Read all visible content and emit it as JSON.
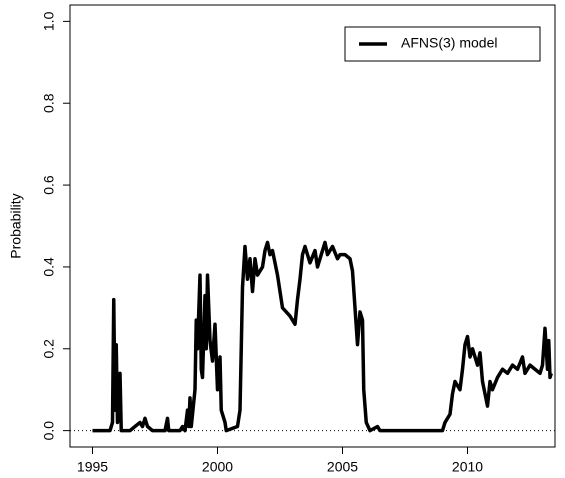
{
  "chart_data": {
    "type": "line",
    "ylabel": "Probability",
    "xlim": [
      1994.1,
      2013.5
    ],
    "ylim": [
      -0.04,
      1.04
    ],
    "xticks": [
      1995,
      2000,
      2005,
      2010
    ],
    "yticks": [
      {
        "value": 0,
        "label": "0.0"
      },
      {
        "value": 0.2,
        "label": "0.2"
      },
      {
        "value": 0.4,
        "label": "0.4"
      },
      {
        "value": 0.6,
        "label": "0.6"
      },
      {
        "value": 0.8,
        "label": "0.8"
      },
      {
        "value": 1,
        "label": "1.0"
      }
    ],
    "reference_line": 0,
    "legend": "topright",
    "series": [
      {
        "name": "AFNS(3) model",
        "color": "#000000",
        "x": [
          1995.0,
          1995.7,
          1995.8,
          1995.85,
          1995.9,
          1995.95,
          1996.0,
          1996.1,
          1996.15,
          1996.5,
          1996.7,
          1996.9,
          1997.0,
          1997.1,
          1997.2,
          1997.4,
          1997.9,
          1998.0,
          1998.05,
          1998.5,
          1998.6,
          1998.7,
          1998.8,
          1998.85,
          1998.9,
          1998.95,
          1999.1,
          1999.15,
          1999.2,
          1999.3,
          1999.35,
          1999.4,
          1999.5,
          1999.55,
          1999.6,
          1999.7,
          1999.8,
          1999.9,
          2000.0,
          2000.1,
          2000.15,
          2000.3,
          2000.35,
          2000.8,
          2000.9,
          2001.0,
          2001.1,
          2001.2,
          2001.3,
          2001.4,
          2001.5,
          2001.6,
          2001.8,
          2001.9,
          2002.0,
          2002.1,
          2002.2,
          2002.4,
          2002.5,
          2002.6,
          2002.9,
          2003.1,
          2003.2,
          2003.3,
          2003.4,
          2003.5,
          2003.7,
          2003.9,
          2004.0,
          2004.2,
          2004.3,
          2004.4,
          2004.6,
          2004.8,
          2004.9,
          2005.1,
          2005.3,
          2005.4,
          2005.5,
          2005.6,
          2005.7,
          2005.8,
          2005.85,
          2005.95,
          2006.1,
          2006.4,
          2006.5,
          2009.0,
          2009.1,
          2009.3,
          2009.4,
          2009.5,
          2009.7,
          2009.8,
          2009.9,
          2010.0,
          2010.1,
          2010.2,
          2010.3,
          2010.4,
          2010.5,
          2010.6,
          2010.7,
          2010.8,
          2010.9,
          2011.0,
          2011.2,
          2011.4,
          2011.6,
          2011.8,
          2012.0,
          2012.2,
          2012.3,
          2012.5,
          2012.7,
          2012.9,
          2013.0,
          2013.1,
          2013.2,
          2013.25,
          2013.3,
          2013.35
        ],
        "values": [
          0,
          0,
          0.02,
          0.32,
          0.05,
          0.21,
          0.02,
          0.14,
          0,
          0,
          0.01,
          0.02,
          0.01,
          0.03,
          0.01,
          0,
          0,
          0.03,
          0,
          0,
          0.01,
          0,
          0.05,
          0.01,
          0.08,
          0.01,
          0.1,
          0.27,
          0.2,
          0.38,
          0.15,
          0.13,
          0.33,
          0.2,
          0.38,
          0.22,
          0.17,
          0.26,
          0.1,
          0.18,
          0.05,
          0.02,
          0,
          0.01,
          0.05,
          0.35,
          0.45,
          0.37,
          0.42,
          0.34,
          0.42,
          0.38,
          0.4,
          0.44,
          0.46,
          0.43,
          0.44,
          0.38,
          0.34,
          0.3,
          0.28,
          0.26,
          0.32,
          0.37,
          0.43,
          0.45,
          0.41,
          0.44,
          0.4,
          0.44,
          0.46,
          0.43,
          0.45,
          0.42,
          0.43,
          0.43,
          0.42,
          0.39,
          0.3,
          0.21,
          0.29,
          0.27,
          0.1,
          0.02,
          0,
          0.01,
          0,
          0,
          0.02,
          0.04,
          0.09,
          0.12,
          0.1,
          0.15,
          0.21,
          0.23,
          0.18,
          0.2,
          0.18,
          0.16,
          0.19,
          0.12,
          0.09,
          0.06,
          0.12,
          0.1,
          0.13,
          0.15,
          0.14,
          0.16,
          0.15,
          0.18,
          0.14,
          0.16,
          0.15,
          0.14,
          0.16,
          0.25,
          0.15,
          0.22,
          0.13,
          0.14
        ]
      }
    ]
  }
}
